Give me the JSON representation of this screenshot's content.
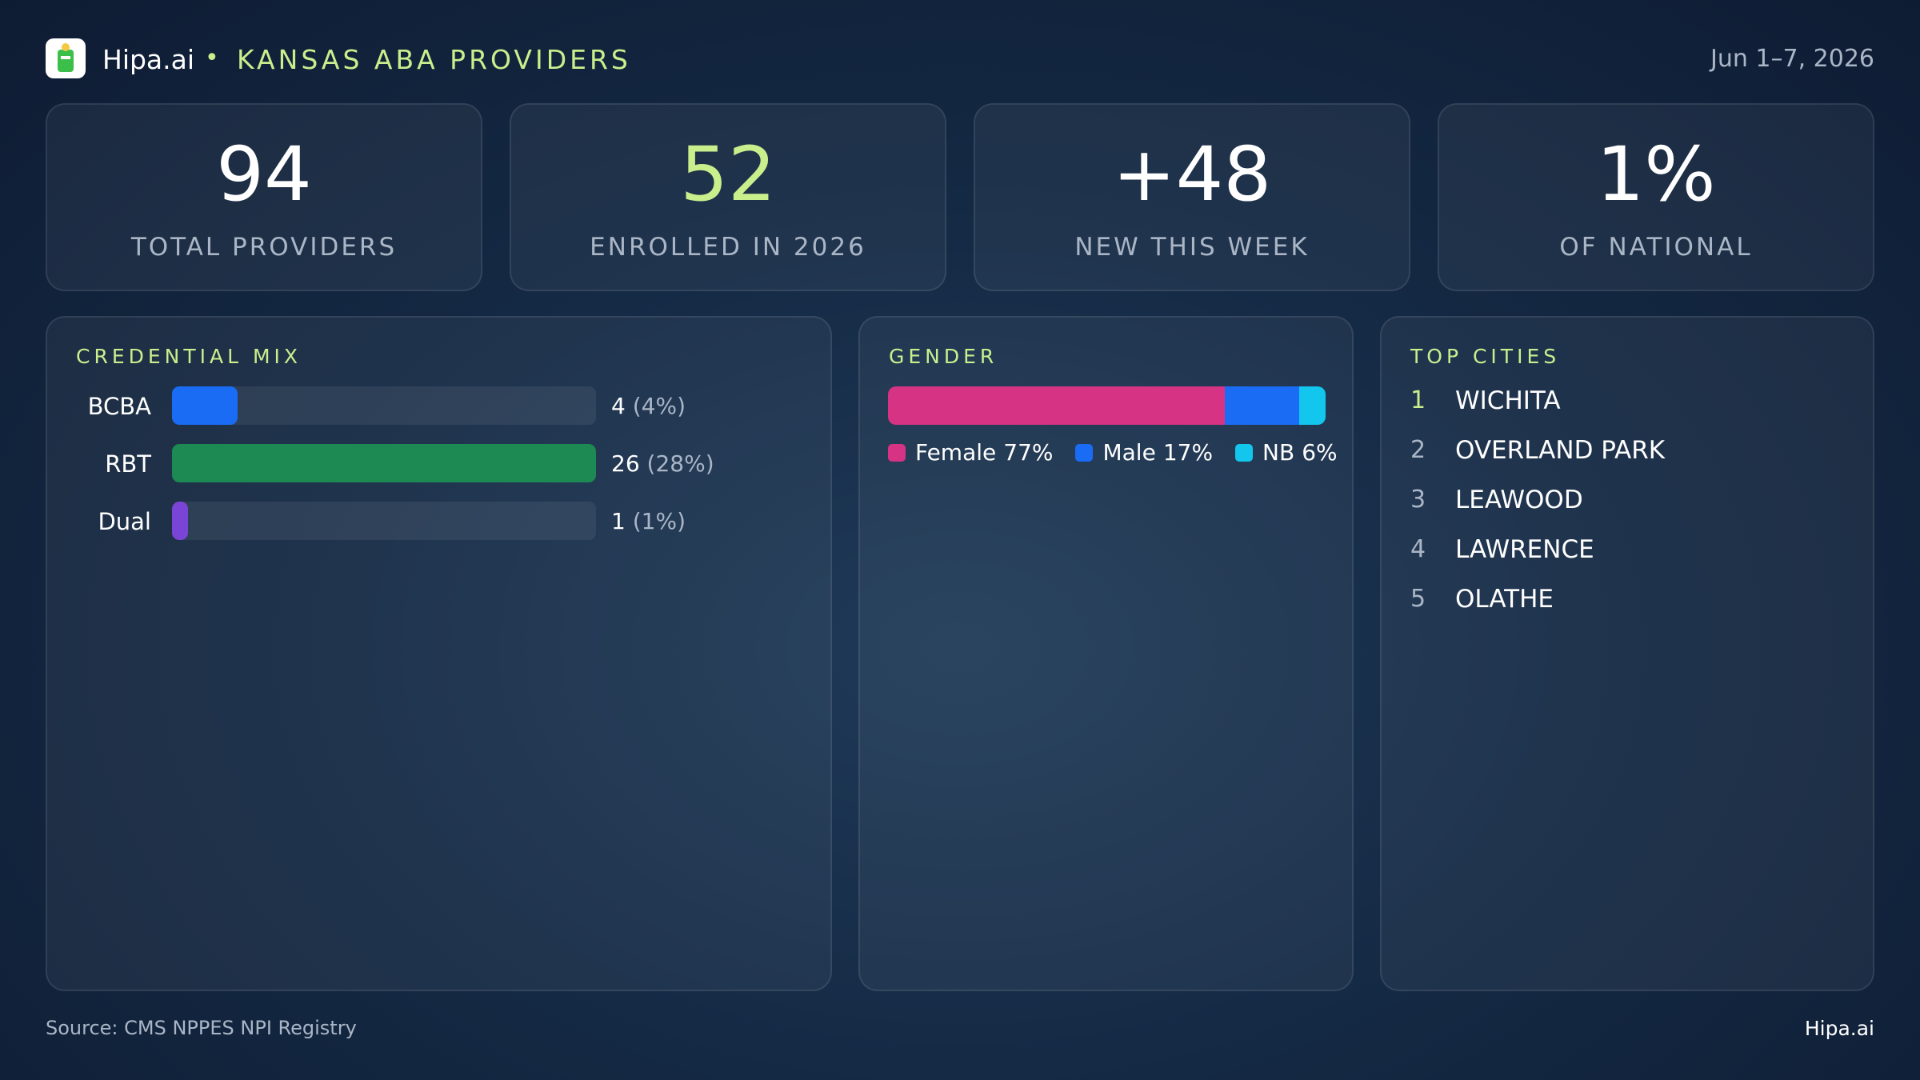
{
  "header": {
    "brand": "Hipa.ai",
    "bullet": "•",
    "title": "KANSAS ABA PROVIDERS",
    "date": "Jun 1–7, 2026"
  },
  "kpis": [
    {
      "value": "94",
      "label": "TOTAL PROVIDERS"
    },
    {
      "value": "52",
      "label": "ENROLLED IN 2026"
    },
    {
      "value": "+48",
      "label": "NEW THIS WEEK"
    },
    {
      "value": "1%",
      "label": "OF NATIONAL"
    }
  ],
  "credential_mix": {
    "title": "CREDENTIAL MIX",
    "categories": [
      "BCBA",
      "RBT",
      "Dual"
    ],
    "values": [
      4,
      26,
      1
    ],
    "percents": [
      4,
      28,
      1
    ],
    "percent_labels": [
      "(4%)",
      "(28%)",
      "(1%)"
    ],
    "colors": [
      "#1a6cf5",
      "#1c8a52",
      "#7a45d6"
    ]
  },
  "gender": {
    "title": "GENDER",
    "series": [
      {
        "name": "Female",
        "value": 77,
        "label": "77%",
        "color": "#d63384"
      },
      {
        "name": "Male",
        "value": 17,
        "label": "17%",
        "color": "#1a6cf5"
      },
      {
        "name": "NB",
        "value": 6,
        "label": "6%",
        "color": "#13c6ee"
      }
    ]
  },
  "top_cities": {
    "title": "TOP CITIES",
    "ranks": [
      "1",
      "2",
      "3",
      "4",
      "5"
    ],
    "cities": [
      "WICHITA",
      "OVERLAND PARK",
      "LEAWOOD",
      "LAWRENCE",
      "OLATHE"
    ]
  },
  "footer": {
    "source": "Source: CMS NPPES NPI Registry",
    "brand": "Hipa.ai"
  }
}
